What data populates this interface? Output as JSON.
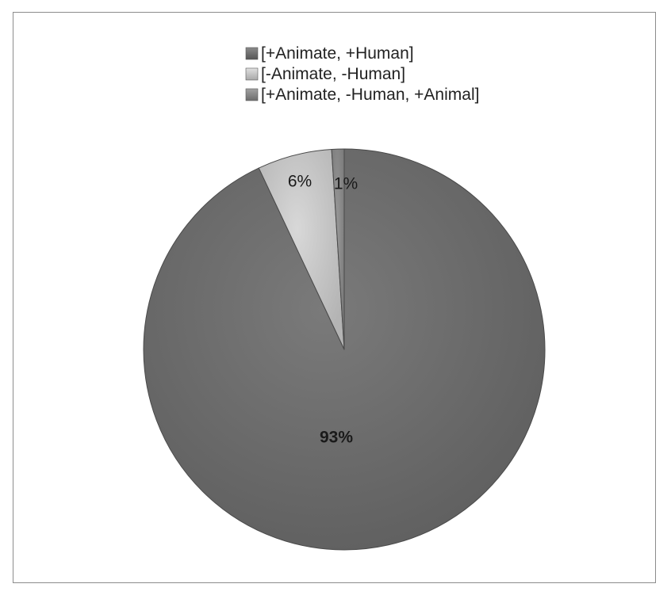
{
  "chart_data": {
    "type": "pie",
    "title": "",
    "categories": [
      "[+Animate, +Human]",
      "[-Animate, -Human]",
      "[+Animate, -Human, +Animal]"
    ],
    "values": [
      93,
      6,
      1
    ],
    "data_labels": [
      "93%",
      "6%",
      "1%"
    ],
    "colors": [
      "#6e6e6e",
      "#c8c8c8",
      "#8a8a8a"
    ],
    "legend_position": "top",
    "start_angle": "12 o'clock",
    "direction": "counter-clockwise from the largest slice's right edge"
  }
}
